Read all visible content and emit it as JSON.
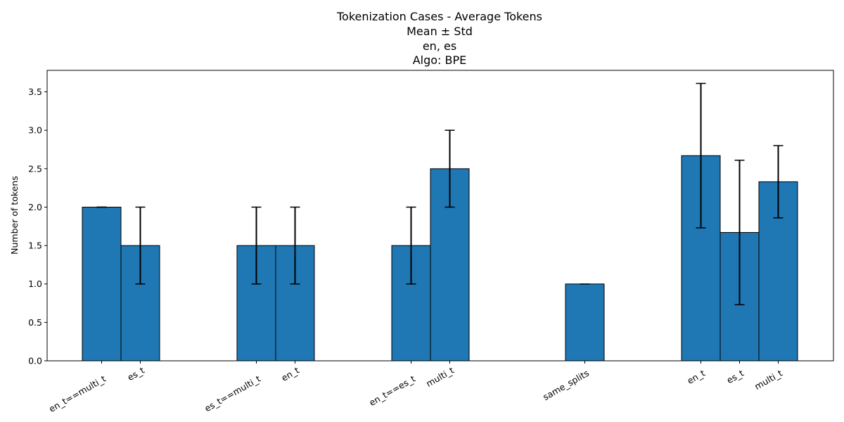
{
  "chart_data": {
    "type": "bar",
    "title_lines": [
      "Tokenization Cases - Average Tokens",
      "Mean ± Std",
      "en, es",
      "Algo: BPE"
    ],
    "xlabel": "",
    "ylabel": "Number of tokens",
    "ylim": [
      0,
      3.78
    ],
    "yticks": [
      "0.0",
      "0.5",
      "1.0",
      "1.5",
      "2.0",
      "2.5",
      "3.0",
      "3.5"
    ],
    "bar_color": "#1f77b4",
    "edge_color": "#000000",
    "grid": false,
    "legend": "none",
    "bars": [
      {
        "label": "en_t==multi_t",
        "mean": 2.0,
        "std": 0.0
      },
      {
        "label": "es_t",
        "mean": 1.5,
        "std": 0.5
      },
      {
        "label": "es_t==multi_t",
        "mean": 1.5,
        "std": 0.5
      },
      {
        "label": "en_t",
        "mean": 1.5,
        "std": 0.5
      },
      {
        "label": "en_t==es_t",
        "mean": 1.5,
        "std": 0.5
      },
      {
        "label": "multi_t",
        "mean": 2.5,
        "std": 0.5
      },
      {
        "label": "same_splits",
        "mean": 1.0,
        "std": 0.0
      },
      {
        "label": "en_t",
        "mean": 2.67,
        "std": 0.94
      },
      {
        "label": "es_t",
        "mean": 1.67,
        "std": 0.94
      },
      {
        "label": "multi_t",
        "mean": 2.33,
        "std": 0.47
      }
    ]
  }
}
